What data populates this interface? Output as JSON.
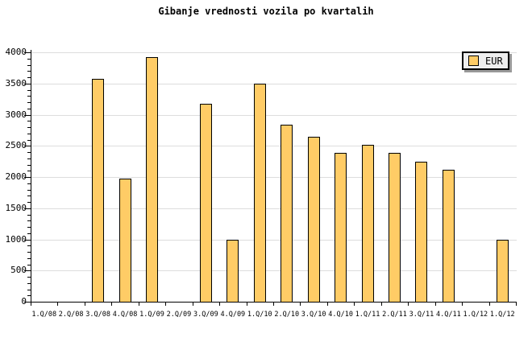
{
  "chart_data": {
    "type": "bar",
    "title": "Gibanje vrednosti vozila po kvartalih",
    "xlabel": "",
    "ylabel": "",
    "categories": [
      "1.Q/08",
      "2.Q/08",
      "3.Q/08",
      "4.Q/08",
      "1.Q/09",
      "2.Q/09",
      "3.Q/09",
      "4.Q/09",
      "1.Q/10",
      "2.Q/10",
      "3.Q/10",
      "4.Q/10",
      "1.Q/11",
      "2.Q/11",
      "3.Q/11",
      "4.Q/11",
      "1.Q/12",
      "1.Q/12"
    ],
    "series": [
      {
        "name": "EUR",
        "values": [
          0,
          0,
          3570,
          1975,
          3920,
          0,
          3170,
          1000,
          3500,
          2840,
          2640,
          2385,
          2515,
          2385,
          2240,
          2110,
          0,
          1000
        ]
      }
    ],
    "missing_value_meaning": "quarters with value 0 show no bar",
    "ylim": [
      0,
      4000
    ],
    "y_major_step": 500,
    "y_minor_step": 100,
    "grid": true,
    "legend_position": "top-right",
    "colors": {
      "bar_fill": "#FFCC66",
      "bar_border": "#000000",
      "grid_line": "#DDDDDD",
      "axis": "#000000",
      "background": "#FFFFFF",
      "legend_bg": "#EEEEEE",
      "legend_border": "#000000",
      "legend_shadow": "#999999"
    }
  }
}
